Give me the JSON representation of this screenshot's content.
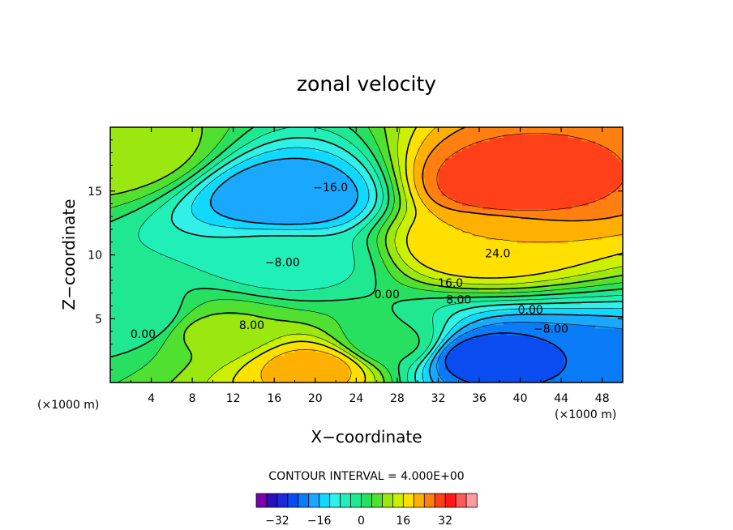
{
  "chart_data": {
    "type": "heatmap",
    "title": "zonal velocity",
    "xlabel": "X−coordinate",
    "ylabel": "Z−coordinate",
    "x_unit_left": "(×1000 m)",
    "x_unit_right": "(×1000 m)",
    "xlim": [
      0,
      50
    ],
    "ylim": [
      0,
      20
    ],
    "x_ticks": [
      "4",
      "8",
      "12",
      "16",
      "20",
      "24",
      "28",
      "32",
      "36",
      "40",
      "44",
      "48"
    ],
    "x_tick_values": [
      4,
      8,
      12,
      16,
      20,
      24,
      28,
      32,
      36,
      40,
      44,
      48
    ],
    "y_ticks": [
      "5",
      "10",
      "15"
    ],
    "y_tick_values": [
      5,
      10,
      15
    ],
    "contour_interval_text": "CONTOUR INTERVAL = 4.000E+00",
    "contour_interval": 4,
    "contour_labels": [
      {
        "text": "−16.0",
        "x": 21.5,
        "y": 15.0
      },
      {
        "text": "−8.00",
        "x": 16.8,
        "y": 9.1
      },
      {
        "text": "0.00",
        "x": 27.0,
        "y": 6.6
      },
      {
        "text": "16.0",
        "x": 33.2,
        "y": 7.5
      },
      {
        "text": "24.0",
        "x": 37.8,
        "y": 9.8
      },
      {
        "text": "8.00",
        "x": 34.0,
        "y": 6.2
      },
      {
        "text": "0.00",
        "x": 41.0,
        "y": 5.4
      },
      {
        "text": "−8.00",
        "x": 43.0,
        "y": 3.9
      },
      {
        "text": "8.00",
        "x": 13.8,
        "y": 4.2
      },
      {
        "text": "0.00",
        "x": 3.2,
        "y": 3.5
      }
    ],
    "field_centers": [
      {
        "x": 17.5,
        "z": 14.5,
        "value": -20
      },
      {
        "x": 17.0,
        "z": 9.5,
        "value": -6
      },
      {
        "x": 38.5,
        "z": 15.5,
        "value": 31
      },
      {
        "x": 36.0,
        "z": 11.0,
        "value": 20
      },
      {
        "x": 20.0,
        "z": 1.2,
        "value": 22
      },
      {
        "x": 36.0,
        "z": 2.0,
        "value": -27
      },
      {
        "x": 44.0,
        "z": 0.5,
        "value": -24
      },
      {
        "x": 0.5,
        "z": 18.0,
        "value": 11
      },
      {
        "x": 2.5,
        "z": 5.0,
        "value": -4
      },
      {
        "x": 10.0,
        "z": 4.0,
        "value": 9
      },
      {
        "x": 27.5,
        "z": 3.0,
        "value": 1
      }
    ],
    "colorbar": {
      "levels": [
        -36,
        -32,
        -28,
        -24,
        -20,
        -16,
        -12,
        -8,
        -4,
        0,
        4,
        8,
        12,
        16,
        20,
        24,
        28,
        32,
        36
      ],
      "colors": [
        "#7a00b0",
        "#2a0fc0",
        "#1a2ad8",
        "#0a4cf0",
        "#0a7cf8",
        "#1aa8ff",
        "#10d8ff",
        "#30f0e8",
        "#20f0b8",
        "#20e890",
        "#28e060",
        "#50e030",
        "#9ae810",
        "#ccf000",
        "#ffe000",
        "#ffb000",
        "#ff8010",
        "#ff4018",
        "#ff1818",
        "#ff5a5a",
        "#ff9aa0"
      ],
      "tick_labels": [
        "−32",
        "−16",
        "0",
        "16",
        "32"
      ],
      "tick_values": [
        -32,
        -16,
        0,
        16,
        32
      ]
    }
  }
}
